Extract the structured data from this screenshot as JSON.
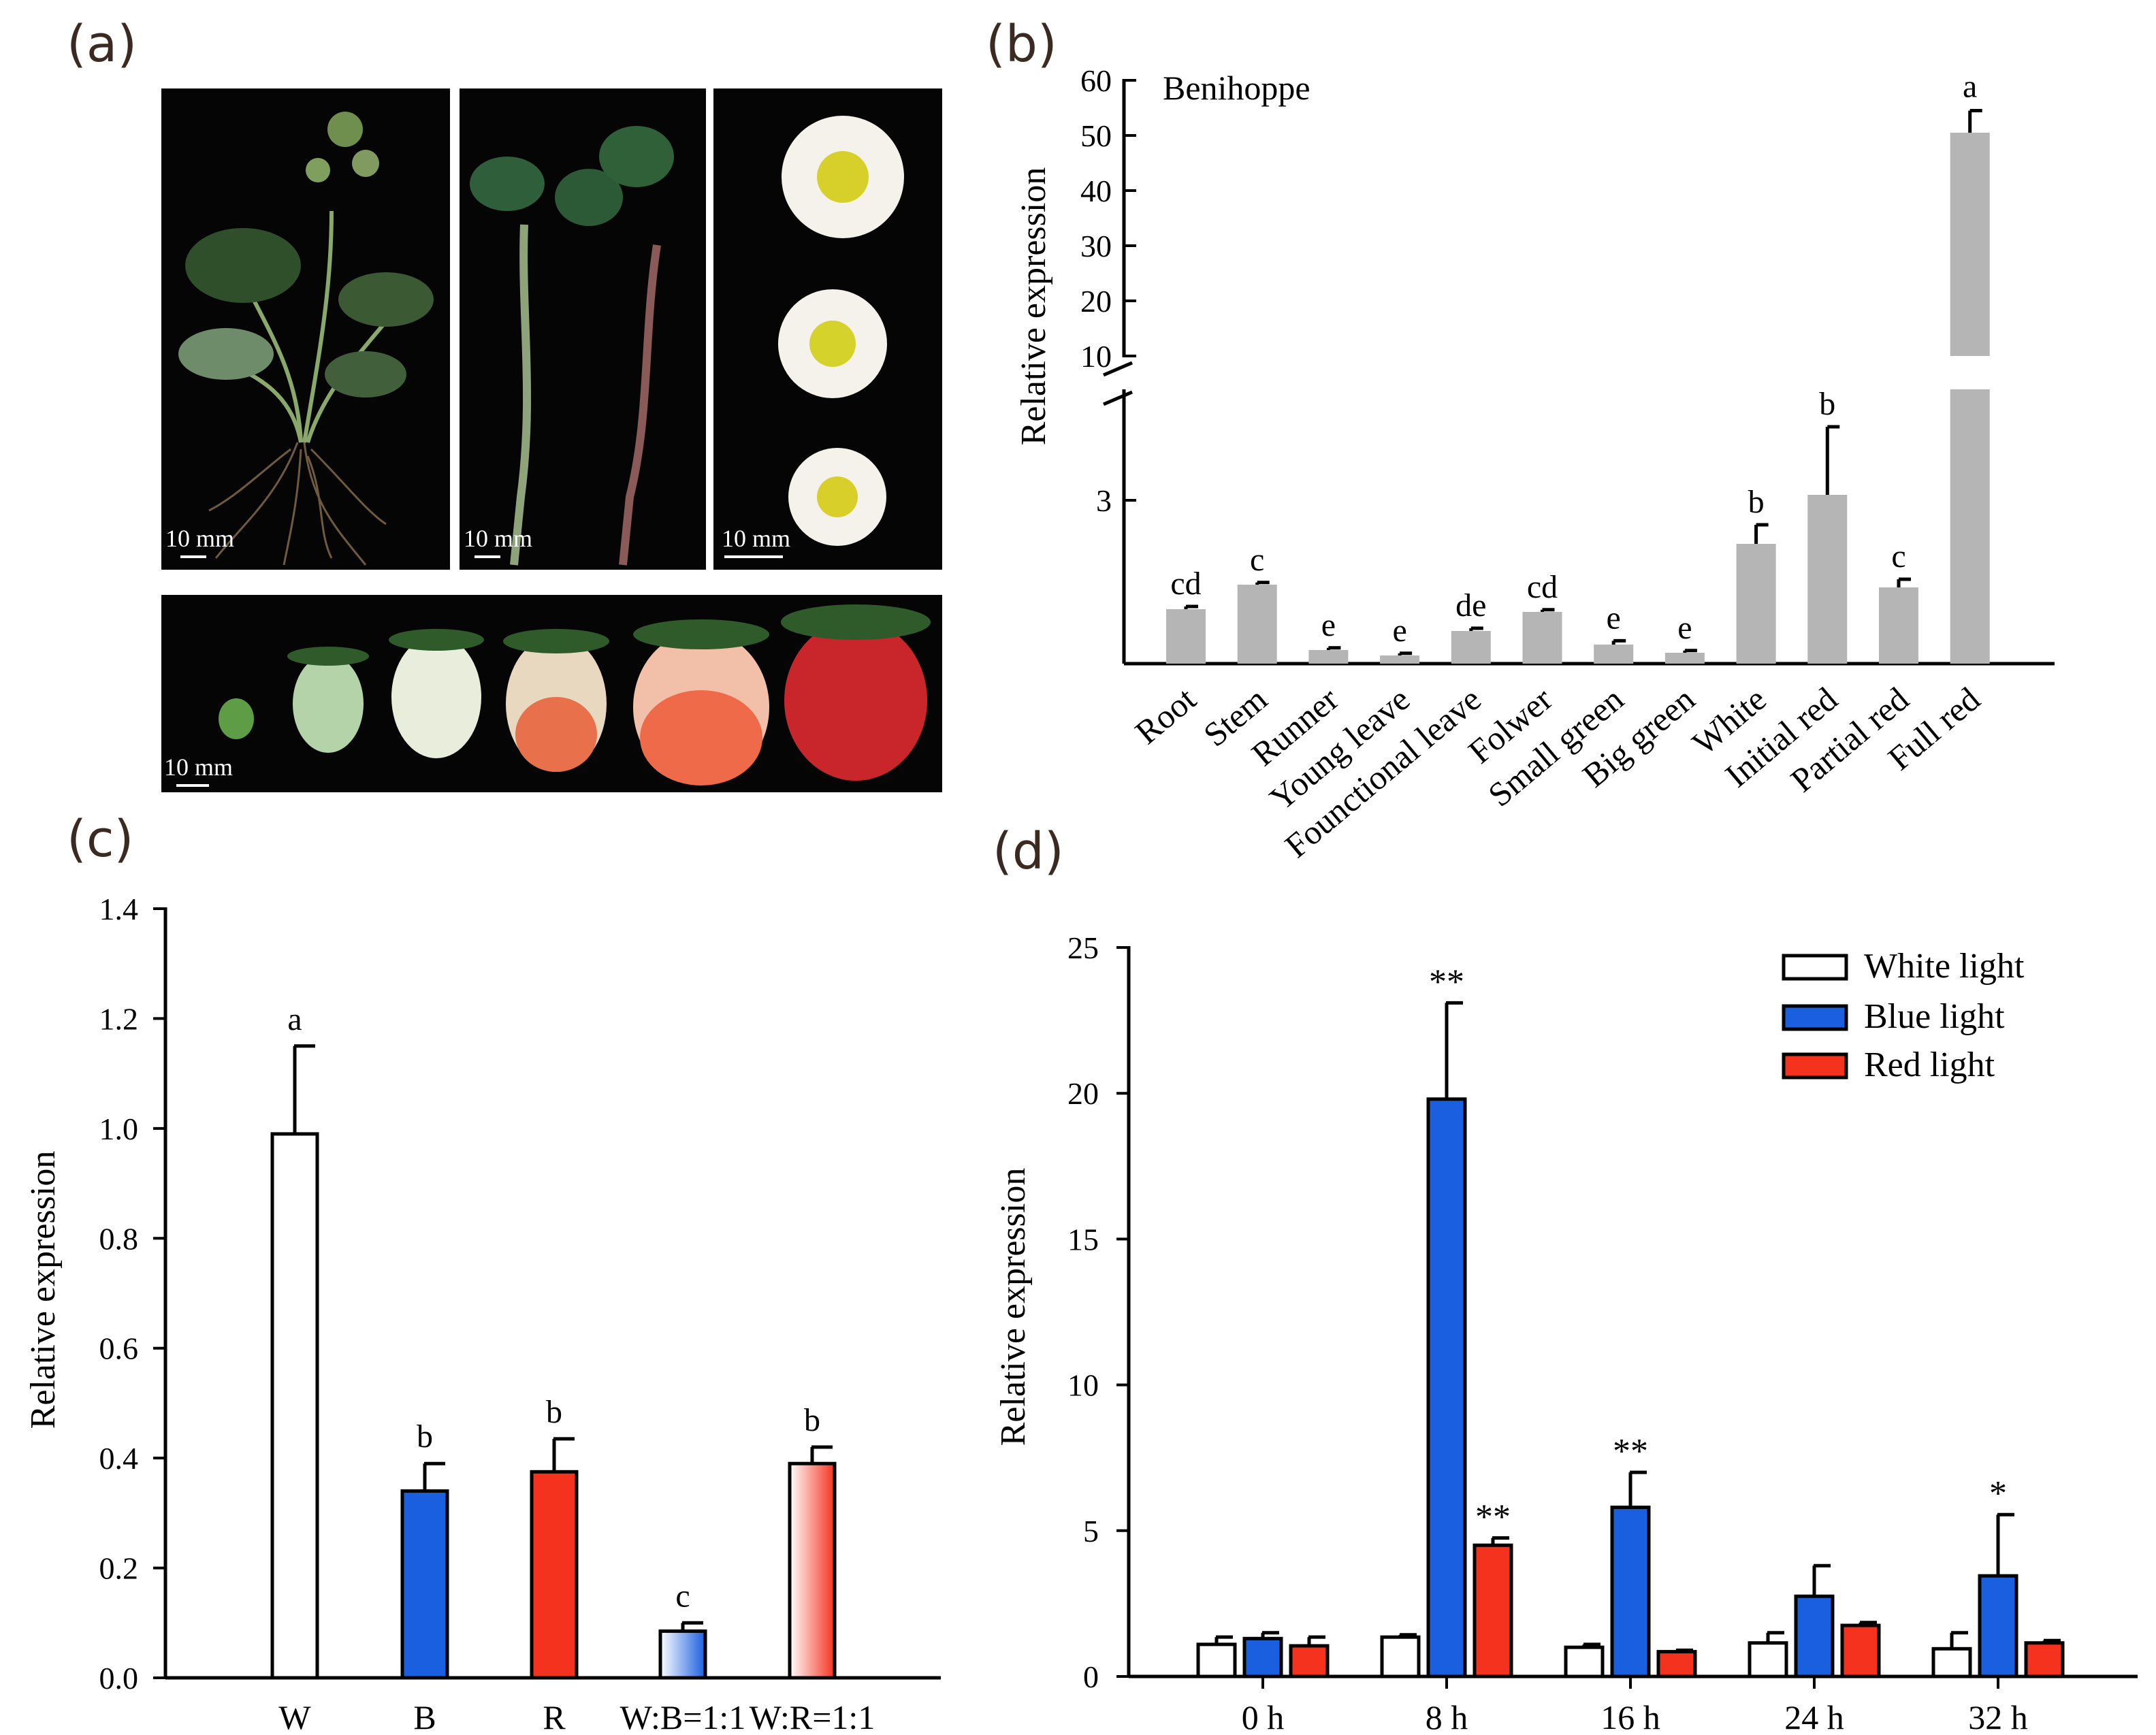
{
  "panel_labels": {
    "a": "(a)",
    "b": "(b)",
    "c": "(c)",
    "d": "(d)"
  },
  "photos": {
    "scale_label": "10 mm",
    "items": [
      {
        "name": "whole-plant-photo",
        "subject": "plant"
      },
      {
        "name": "runner-photo",
        "subject": "runners"
      },
      {
        "name": "flower-photo",
        "subject": "flowers"
      },
      {
        "name": "fruit-stages-photo",
        "subject": "fruits"
      }
    ]
  },
  "chart_data": [
    {
      "id": "b",
      "type": "bar",
      "annotation": "Benihoppe",
      "ylabel": "Relative expression",
      "xlabel": "",
      "broken_axis": true,
      "upper_ylim": [
        10,
        60
      ],
      "upper_ticks": [
        10,
        20,
        30,
        40,
        50,
        60
      ],
      "lower_ticks": [
        3
      ],
      "bar_color": "#b5b5b5",
      "categories": [
        "Root",
        "Stem",
        "Runner",
        "Young leave",
        "Founctional leave",
        "Folwer",
        "Small green",
        "Big green",
        "White",
        "Initial red",
        "Partial red",
        "Full red"
      ],
      "values": [
        1.0,
        1.45,
        0.25,
        0.15,
        0.6,
        0.95,
        0.35,
        0.2,
        2.2,
        3.1,
        1.4,
        50.5
      ],
      "errors": [
        0.05,
        0.04,
        0.04,
        0.04,
        0.05,
        0.04,
        0.07,
        0.04,
        0.35,
        1.25,
        0.15,
        4.0
      ],
      "significance": [
        "cd",
        "c",
        "e",
        "e",
        "de",
        "cd",
        "e",
        "e",
        "b",
        "b",
        "c",
        "a"
      ]
    },
    {
      "id": "c",
      "type": "bar",
      "ylabel": "Relative expression",
      "xlabel": "",
      "ylim": [
        0,
        1.4
      ],
      "yticks": [
        "0.0",
        "0.2",
        "0.4",
        "0.6",
        "0.8",
        "1.0",
        "1.2",
        "1.4"
      ],
      "categories": [
        "W",
        "B",
        "R",
        "W:B=1:1",
        "W:R=1:1"
      ],
      "values": [
        0.99,
        0.34,
        0.375,
        0.085,
        0.39
      ],
      "errors": [
        0.16,
        0.05,
        0.06,
        0.015,
        0.03
      ],
      "significance": [
        "a",
        "b",
        "b",
        "c",
        "b"
      ],
      "fills": [
        "#ffffff",
        "#1a5fe0",
        "#f5321e",
        "gradient-blue",
        "gradient-red"
      ]
    },
    {
      "id": "d",
      "type": "bar",
      "ylabel": "Relative expression",
      "xlabel": "",
      "ylim": [
        0,
        25
      ],
      "yticks": [
        0,
        5,
        10,
        15,
        20,
        25
      ],
      "categories": [
        "0 h",
        "8 h",
        "16 h",
        "24 h",
        "32 h"
      ],
      "legend_position": "top-right",
      "series": [
        {
          "name": "White light",
          "color": "#ffffff",
          "values": [
            1.1,
            1.35,
            1.0,
            1.15,
            0.95
          ],
          "errors": [
            0.25,
            0.08,
            0.1,
            0.35,
            0.55
          ],
          "significance": [
            "",
            "",
            "",
            "",
            ""
          ]
        },
        {
          "name": "Blue light",
          "color": "#1a5fe0",
          "values": [
            1.3,
            19.8,
            5.8,
            2.75,
            3.45
          ],
          "errors": [
            0.2,
            3.3,
            1.2,
            1.05,
            2.1
          ],
          "significance": [
            "",
            "**",
            "**",
            "",
            "*"
          ]
        },
        {
          "name": "Red light",
          "color": "#f5321e",
          "values": [
            1.05,
            4.5,
            0.85,
            1.75,
            1.15
          ],
          "errors": [
            0.3,
            0.25,
            0.05,
            0.1,
            0.08
          ],
          "significance": [
            "",
            "**",
            "",
            "",
            ""
          ]
        }
      ]
    }
  ]
}
